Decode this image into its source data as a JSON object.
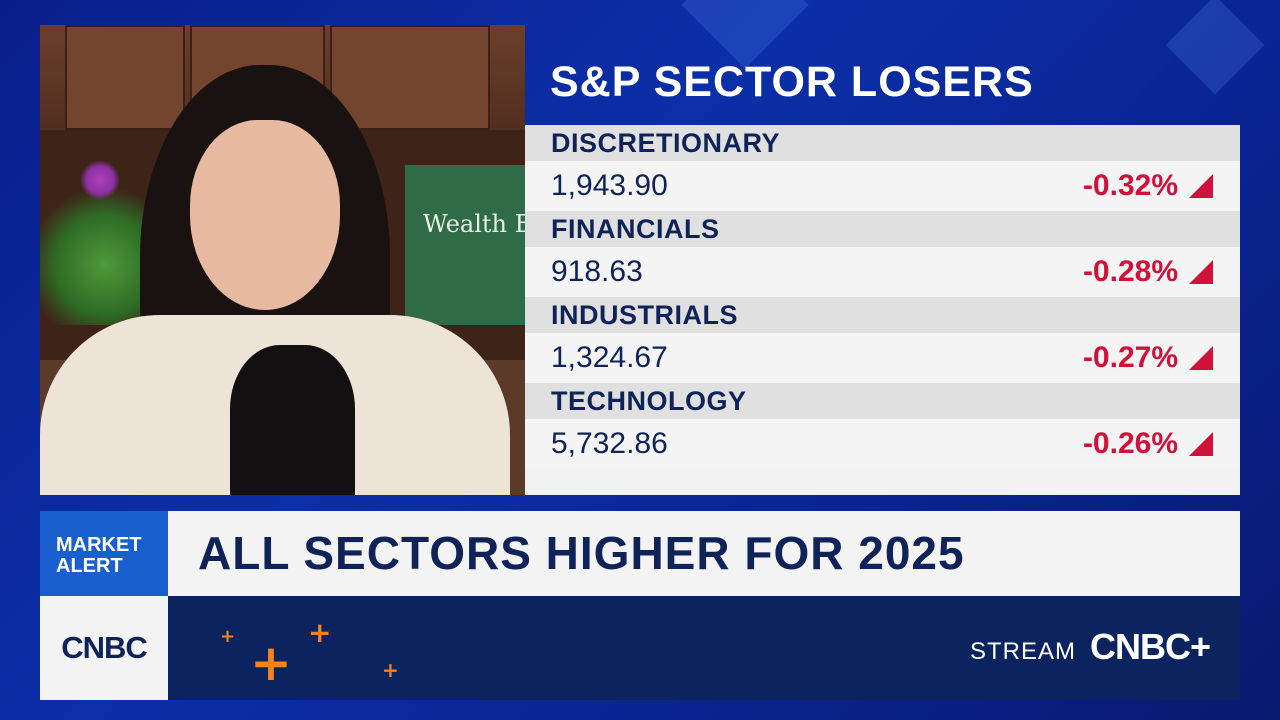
{
  "video": {
    "background_sign": "Wealth Enhance"
  },
  "panel": {
    "title": "S&P SECTOR LOSERS",
    "rows": [
      {
        "sector": "DISCRETIONARY",
        "value": "1,943.90",
        "change": "-0.32%",
        "direction": "down"
      },
      {
        "sector": "FINANCIALS",
        "value": "918.63",
        "change": "-0.28%",
        "direction": "down"
      },
      {
        "sector": "INDUSTRIALS",
        "value": "1,324.67",
        "change": "-0.27%",
        "direction": "down"
      },
      {
        "sector": "TECHNOLOGY",
        "value": "5,732.86",
        "change": "-0.26%",
        "direction": "down"
      }
    ],
    "loss_color": "#d0123a"
  },
  "ticker": {
    "alert_line1": "MARKET",
    "alert_line2": "ALERT",
    "headline": "ALL SECTORS HIGHER FOR 2025",
    "logo": "CNBC",
    "stream_label": "STREAM",
    "stream_brand": "CNBC+"
  }
}
